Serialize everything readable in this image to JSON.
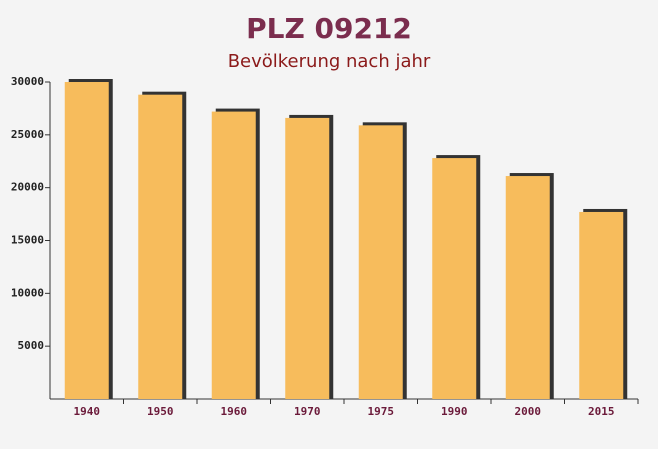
{
  "chart_data": {
    "type": "bar",
    "title": "PLZ 09212",
    "subtitle": "Bevölkerung nach jahr",
    "categories": [
      "1940",
      "1950",
      "1960",
      "1970",
      "1975",
      "1990",
      "2000",
      "2015"
    ],
    "values": [
      30000,
      28800,
      27200,
      26600,
      25900,
      22800,
      21100,
      17700
    ],
    "color": "#f7bc5c",
    "ylim": [
      0,
      30000
    ],
    "yticks": [
      5000,
      10000,
      15000,
      20000,
      25000,
      30000
    ]
  }
}
